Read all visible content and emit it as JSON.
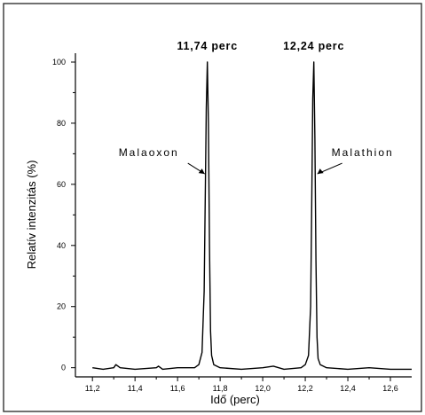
{
  "chart_data": {
    "type": "line",
    "title": "",
    "xlabel": "Idő (perc)",
    "ylabel": "Relatív intenzitás (%)",
    "xlim": [
      11.2,
      12.7
    ],
    "ylim": [
      -2,
      102
    ],
    "x_ticks": [
      "11,2",
      "11,4",
      "11,6",
      "11,8",
      "12,0",
      "12,2",
      "12,4",
      "12,6"
    ],
    "x_tick_values": [
      11.2,
      11.4,
      11.6,
      11.8,
      12.0,
      12.2,
      12.4,
      12.6
    ],
    "y_ticks": [
      "0",
      "20",
      "40",
      "60",
      "80",
      "100"
    ],
    "y_tick_values": [
      0,
      20,
      40,
      60,
      80,
      100
    ],
    "grid": false,
    "legend": "none",
    "series": [
      {
        "x": [
          11.2,
          11.25,
          11.3,
          11.31,
          11.33,
          11.4,
          11.5,
          11.51,
          11.53,
          11.6,
          11.68,
          11.7,
          11.715,
          11.725,
          11.73,
          11.735,
          11.74,
          11.745,
          11.75,
          11.755,
          11.76,
          11.77,
          11.8,
          11.9,
          12.0,
          12.05,
          12.1,
          12.18,
          12.2,
          12.215,
          12.225,
          12.23,
          12.235,
          12.24,
          12.245,
          12.25,
          12.255,
          12.26,
          12.27,
          12.3,
          12.4,
          12.5,
          12.6,
          12.7
        ],
        "y": [
          0,
          -0.5,
          0,
          1,
          0,
          -0.5,
          0,
          0.5,
          -0.5,
          0,
          0,
          1,
          5,
          25,
          55,
          85,
          100,
          80,
          40,
          12,
          4,
          1,
          0,
          -0.5,
          0,
          0.5,
          -0.5,
          0,
          1,
          4,
          20,
          52,
          88,
          100,
          75,
          35,
          10,
          3,
          1,
          0,
          -0.5,
          0,
          -0.5,
          -0.5
        ]
      }
    ],
    "peaks": [
      {
        "x": 11.74,
        "label": "11,74 perc",
        "compound": "Malaoxon",
        "annot_y": 64
      },
      {
        "x": 12.24,
        "label": "12,24 perc",
        "compound": "Malathion",
        "annot_y": 64
      }
    ]
  }
}
